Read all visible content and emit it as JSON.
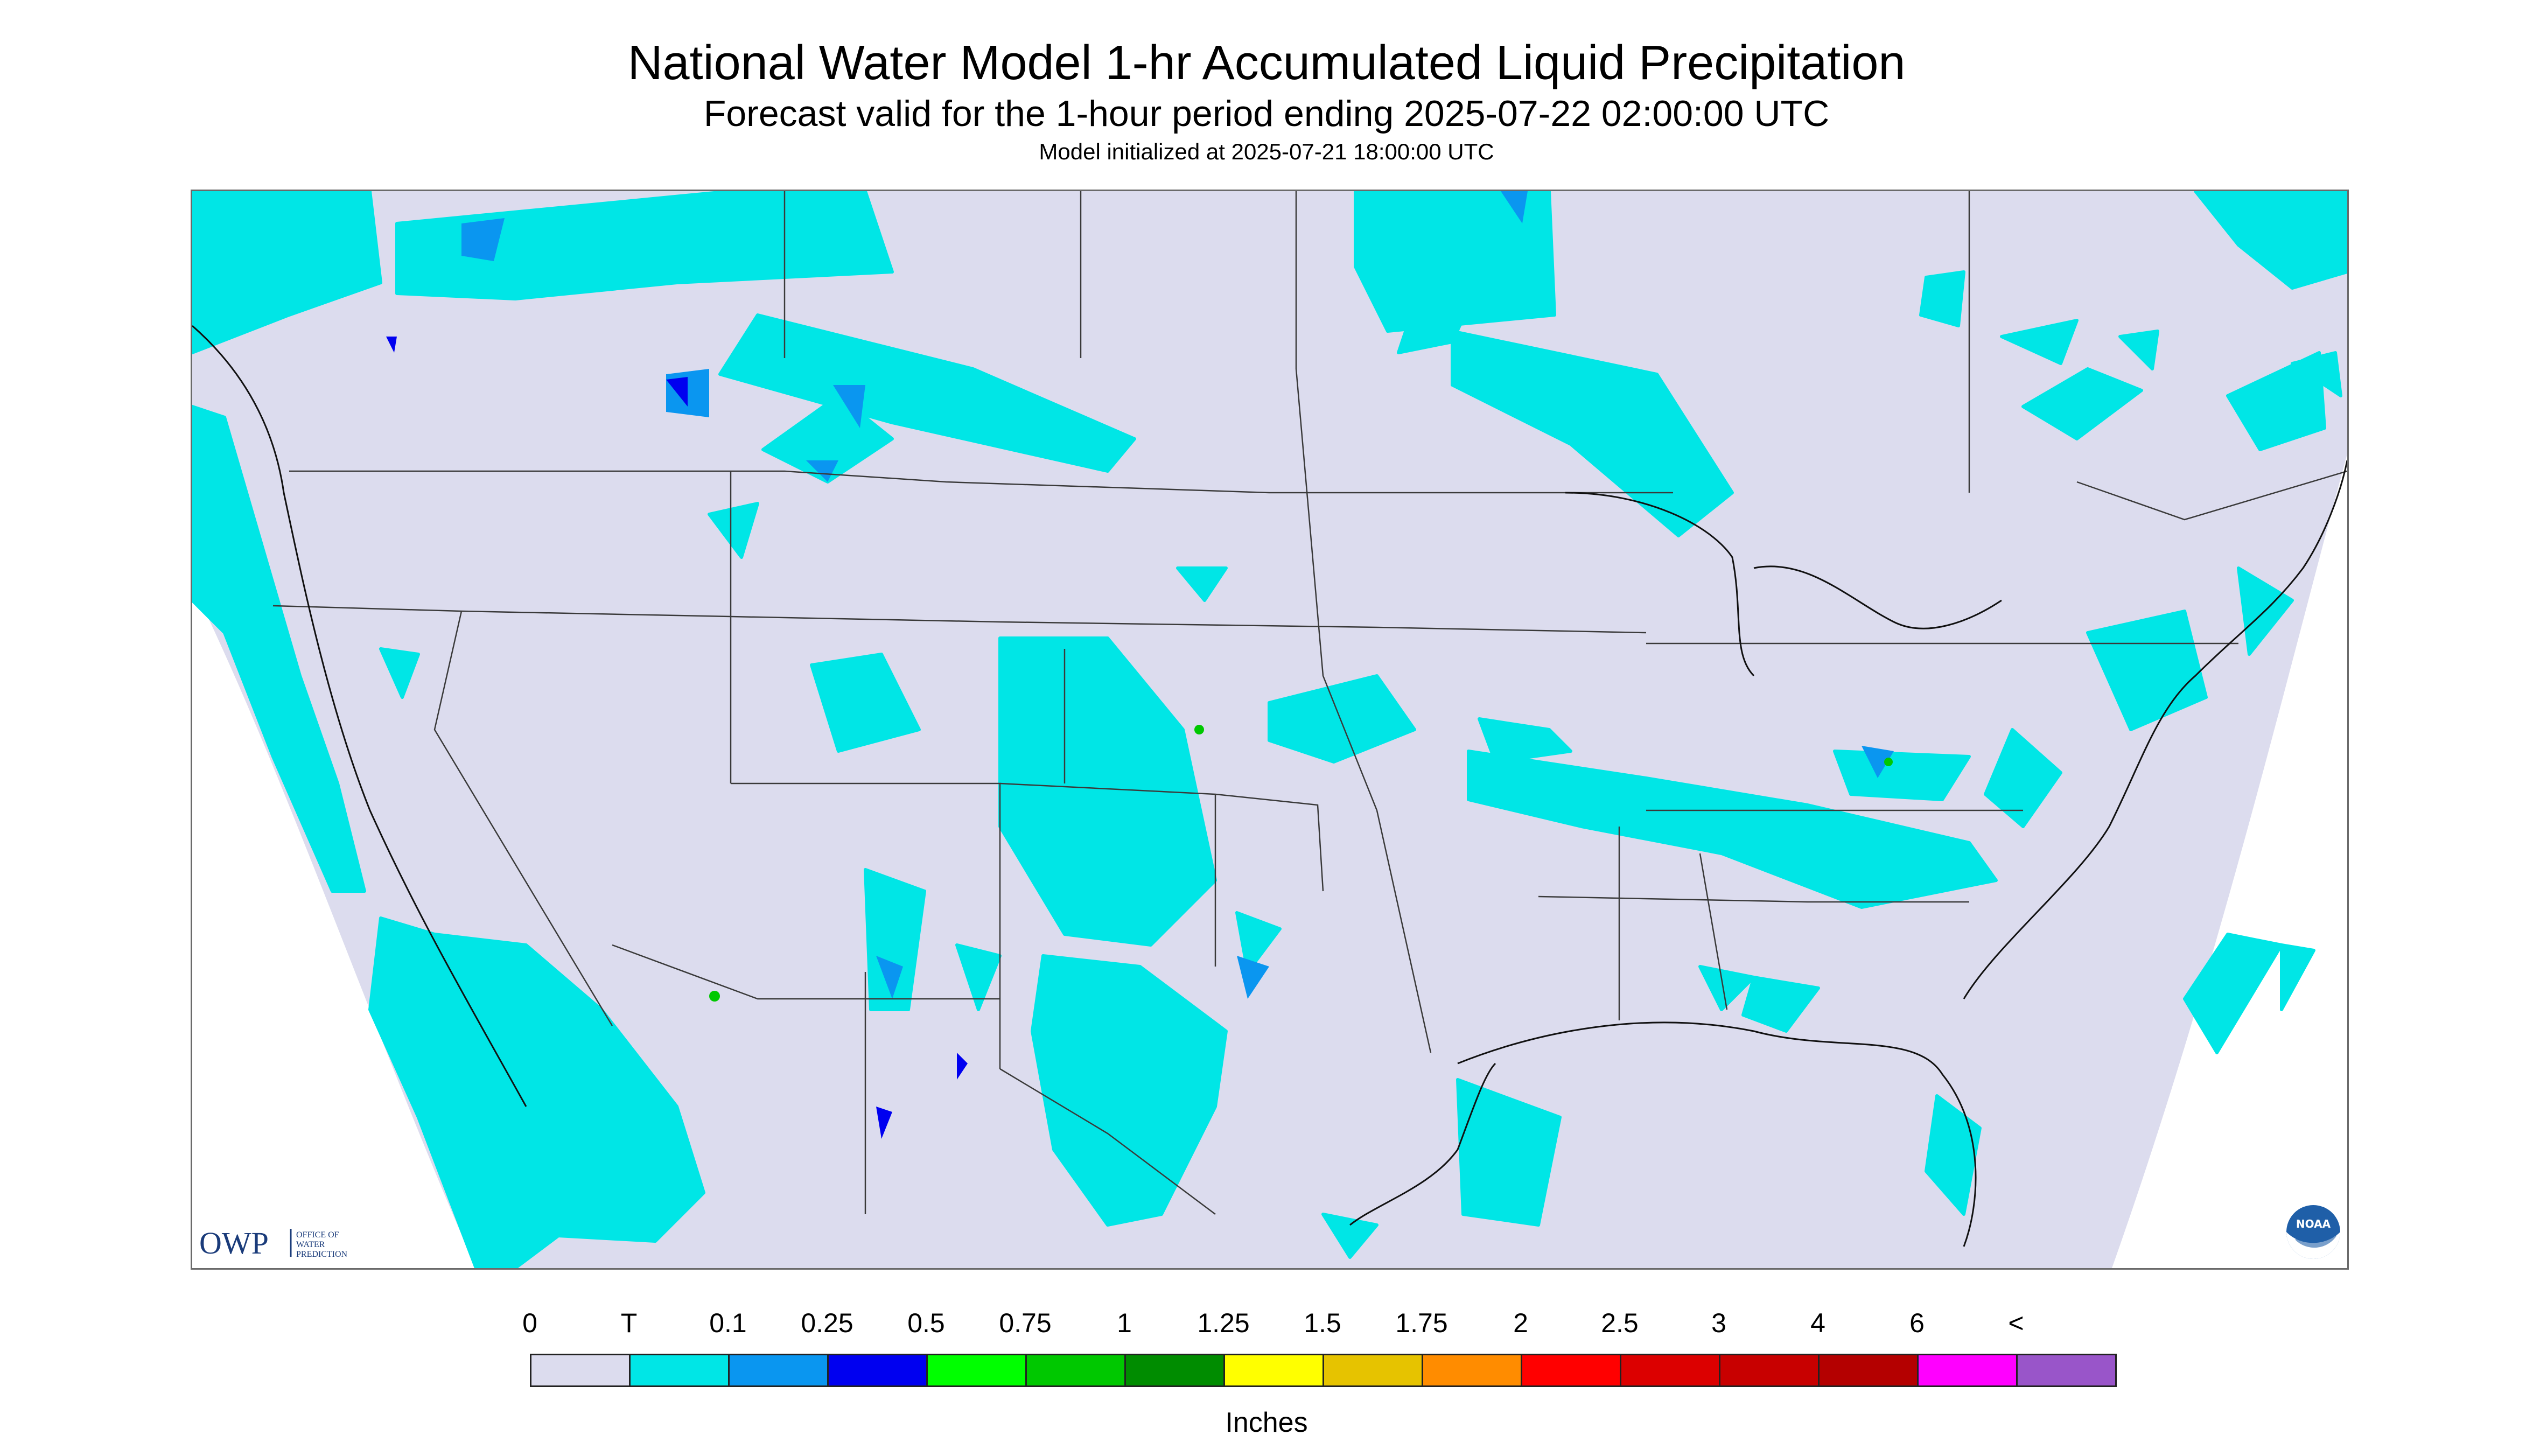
{
  "header": {
    "title": "National Water Model 1-hr Accumulated Liquid Precipitation",
    "subtitle": "Forecast valid for the 1-hour period ending 2025-07-22 02:00:00 UTC",
    "init": "Model initialized at 2025-07-21 18:00:00 UTC"
  },
  "map": {
    "region": "CONUS",
    "background_color": "#dcdcee",
    "precip_colors": {
      "trace": "#00e6e6",
      "light": "#0a96f0",
      "moderate": "#0000f0",
      "heavy": "#00c800"
    }
  },
  "logos": {
    "owp": {
      "letters": "OWP",
      "line1": "OFFICE OF",
      "line2": "WATER",
      "line3": "PREDICTION"
    },
    "noaa": {
      "letters": "NOAA"
    }
  },
  "legend": {
    "ticks": [
      "0",
      "T",
      "0.1",
      "0.25",
      "0.5",
      "0.75",
      "1",
      "1.25",
      "1.5",
      "1.75",
      "2",
      "2.5",
      "3",
      "4",
      "6",
      "<"
    ],
    "colors": [
      "#dcdcee",
      "#00e6e6",
      "#0a96f0",
      "#0000f0",
      "#00ff00",
      "#00c800",
      "#008c00",
      "#ffff00",
      "#e6c300",
      "#ff8c00",
      "#ff0000",
      "#dc0000",
      "#c80000",
      "#b40000",
      "#ff00ff",
      "#9955c9"
    ],
    "units": "Inches"
  }
}
